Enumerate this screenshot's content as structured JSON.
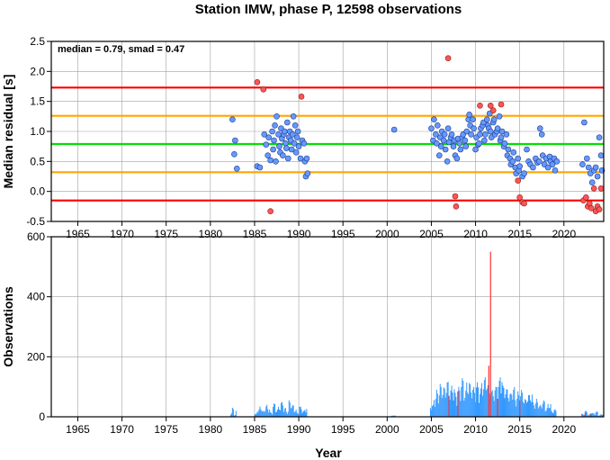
{
  "chart_data": [
    {
      "type": "scatter",
      "title": "Station IMW, phase P, 12598 observations",
      "xlabel": "",
      "ylabel": "Median residual [s]",
      "xlim": [
        1962,
        2024.5
      ],
      "ylim": [
        -0.5,
        2.5
      ],
      "x_ticks": [
        "1965",
        "1970",
        "1975",
        "1980",
        "1985",
        "1990",
        "1995",
        "2000",
        "2005",
        "2010",
        "2015",
        "2020"
      ],
      "y_ticks": [
        "-0.5",
        "0.0",
        "0.5",
        "1.0",
        "1.5",
        "2.0",
        "2.5"
      ],
      "grid": true,
      "annotation": "median = 0.79, smad = 0.47",
      "reference_lines": [
        {
          "value": 1.73,
          "color": "#ff0000"
        },
        {
          "value": 1.26,
          "color": "#ffa500"
        },
        {
          "value": 0.79,
          "color": "#00e000"
        },
        {
          "value": 0.32,
          "color": "#ffa500"
        },
        {
          "value": -0.15,
          "color": "#ff0000"
        }
      ],
      "point_colors": {
        "inlier": "#6699ff",
        "outlier": "#ff5555"
      },
      "inliers": [
        [
          1982.5,
          1.2
        ],
        [
          1982.7,
          0.62
        ],
        [
          1982.8,
          0.85
        ],
        [
          1983.0,
          0.38
        ],
        [
          1985.3,
          0.42
        ],
        [
          1985.6,
          0.4
        ],
        [
          1986.1,
          0.95
        ],
        [
          1986.3,
          0.78
        ],
        [
          1986.5,
          0.6
        ],
        [
          1986.6,
          0.9
        ],
        [
          1986.8,
          0.52
        ],
        [
          1987.0,
          1.0
        ],
        [
          1987.1,
          0.7
        ],
        [
          1987.2,
          0.85
        ],
        [
          1987.3,
          1.1
        ],
        [
          1987.4,
          0.5
        ],
        [
          1987.5,
          1.25
        ],
        [
          1987.7,
          0.95
        ],
        [
          1987.8,
          0.75
        ],
        [
          1987.9,
          0.65
        ],
        [
          1988.0,
          1.05
        ],
        [
          1988.1,
          0.88
        ],
        [
          1988.2,
          0.6
        ],
        [
          1988.3,
          0.95
        ],
        [
          1988.4,
          1.0
        ],
        [
          1988.5,
          0.8
        ],
        [
          1988.6,
          0.72
        ],
        [
          1988.7,
          1.15
        ],
        [
          1988.8,
          0.55
        ],
        [
          1988.9,
          0.9
        ],
        [
          1989.0,
          1.0
        ],
        [
          1989.1,
          0.85
        ],
        [
          1989.2,
          0.7
        ],
        [
          1989.3,
          0.95
        ],
        [
          1989.4,
          1.25
        ],
        [
          1989.5,
          0.8
        ],
        [
          1989.6,
          1.1
        ],
        [
          1989.7,
          0.65
        ],
        [
          1989.8,
          0.9
        ],
        [
          1989.9,
          1.0
        ],
        [
          1990.0,
          0.75
        ],
        [
          1990.2,
          0.55
        ],
        [
          1990.4,
          0.85
        ],
        [
          1990.6,
          0.8
        ],
        [
          1990.7,
          0.5
        ],
        [
          1990.8,
          0.25
        ],
        [
          1990.9,
          0.55
        ],
        [
          1991.0,
          0.3
        ],
        [
          2000.8,
          1.03
        ],
        [
          2005.0,
          1.05
        ],
        [
          2005.2,
          0.85
        ],
        [
          2005.3,
          1.2
        ],
        [
          2005.5,
          0.95
        ],
        [
          2005.6,
          0.8
        ],
        [
          2005.7,
          1.1
        ],
        [
          2005.9,
          0.6
        ],
        [
          2006.0,
          0.9
        ],
        [
          2006.1,
          0.75
        ],
        [
          2006.2,
          1.0
        ],
        [
          2006.4,
          0.85
        ],
        [
          2006.5,
          0.95
        ],
        [
          2006.6,
          0.7
        ],
        [
          2006.8,
          0.5
        ],
        [
          2006.9,
          1.05
        ],
        [
          2007.0,
          0.82
        ],
        [
          2007.2,
          0.9
        ],
        [
          2007.3,
          0.95
        ],
        [
          2007.5,
          0.75
        ],
        [
          2007.6,
          0.85
        ],
        [
          2007.7,
          0.6
        ],
        [
          2007.9,
          0.55
        ],
        [
          2008.0,
          0.88
        ],
        [
          2008.2,
          0.8
        ],
        [
          2008.3,
          0.7
        ],
        [
          2008.5,
          0.9
        ],
        [
          2008.6,
          0.95
        ],
        [
          2008.8,
          0.85
        ],
        [
          2008.9,
          0.75
        ],
        [
          2009.0,
          1.0
        ],
        [
          2009.2,
          1.2
        ],
        [
          2009.3,
          1.28
        ],
        [
          2009.4,
          1.1
        ],
        [
          2009.5,
          0.95
        ],
        [
          2009.7,
          1.2
        ],
        [
          2009.8,
          1.05
        ],
        [
          2010.0,
          0.7
        ],
        [
          2010.1,
          0.9
        ],
        [
          2010.3,
          0.78
        ],
        [
          2010.4,
          0.8
        ],
        [
          2010.5,
          0.95
        ],
        [
          2010.6,
          1.05
        ],
        [
          2010.8,
          1.1
        ],
        [
          2010.9,
          1.15
        ],
        [
          2011.0,
          0.85
        ],
        [
          2011.1,
          0.95
        ],
        [
          2011.3,
          1.2
        ],
        [
          2011.4,
          1.1
        ],
        [
          2011.5,
          1.05
        ],
        [
          2011.6,
          1.3
        ],
        [
          2011.7,
          1.0
        ],
        [
          2011.8,
          0.9
        ],
        [
          2012.0,
          1.15
        ],
        [
          2012.1,
          1.2
        ],
        [
          2012.2,
          0.95
        ],
        [
          2012.4,
          1.0
        ],
        [
          2012.5,
          1.05
        ],
        [
          2012.7,
          1.25
        ],
        [
          2012.8,
          0.85
        ],
        [
          2012.9,
          0.9
        ],
        [
          2013.0,
          1.0
        ],
        [
          2013.2,
          0.75
        ],
        [
          2013.3,
          0.8
        ],
        [
          2013.5,
          0.95
        ],
        [
          2013.6,
          0.6
        ],
        [
          2013.7,
          0.7
        ],
        [
          2013.9,
          0.55
        ],
        [
          2014.0,
          0.45
        ],
        [
          2014.2,
          0.5
        ],
        [
          2014.3,
          0.65
        ],
        [
          2014.5,
          0.4
        ],
        [
          2014.6,
          0.3
        ],
        [
          2014.8,
          0.55
        ],
        [
          2014.9,
          0.35
        ],
        [
          2015.0,
          0.42
        ],
        [
          2015.3,
          0.25
        ],
        [
          2015.5,
          0.3
        ],
        [
          2015.8,
          0.7
        ],
        [
          2016.0,
          0.5
        ],
        [
          2016.2,
          0.45
        ],
        [
          2016.5,
          0.4
        ],
        [
          2016.8,
          0.55
        ],
        [
          2017.0,
          0.48
        ],
        [
          2017.2,
          0.5
        ],
        [
          2017.3,
          1.05
        ],
        [
          2017.5,
          0.95
        ],
        [
          2017.6,
          0.6
        ],
        [
          2017.8,
          0.45
        ],
        [
          2018.0,
          0.55
        ],
        [
          2018.2,
          0.4
        ],
        [
          2018.4,
          0.58
        ],
        [
          2018.5,
          0.5
        ],
        [
          2018.7,
          0.45
        ],
        [
          2018.9,
          0.55
        ],
        [
          2019.0,
          0.35
        ],
        [
          2019.2,
          0.5
        ],
        [
          2022.1,
          0.45
        ],
        [
          2022.3,
          1.15
        ],
        [
          2022.6,
          0.55
        ],
        [
          2022.8,
          0.4
        ],
        [
          2023.0,
          0.3
        ],
        [
          2023.2,
          0.15
        ],
        [
          2023.4,
          0.35
        ],
        [
          2023.6,
          0.4
        ],
        [
          2023.8,
          0.25
        ],
        [
          2024.0,
          0.9
        ],
        [
          2024.2,
          0.6
        ],
        [
          2024.3,
          0.35
        ]
      ],
      "outliers": [
        [
          1985.3,
          1.82
        ],
        [
          1986.0,
          1.7
        ],
        [
          1986.8,
          -0.33
        ],
        [
          1990.3,
          1.58
        ],
        [
          2006.9,
          2.22
        ],
        [
          2007.7,
          -0.08
        ],
        [
          2007.8,
          -0.25
        ],
        [
          2010.5,
          1.43
        ],
        [
          2011.7,
          1.43
        ],
        [
          2012.0,
          1.35
        ],
        [
          2012.9,
          1.45
        ],
        [
          2014.8,
          0.18
        ],
        [
          2015.0,
          -0.1
        ],
        [
          2015.3,
          -0.18
        ],
        [
          2015.5,
          -0.2
        ],
        [
          2022.2,
          -0.15
        ],
        [
          2022.5,
          -0.1
        ],
        [
          2022.7,
          -0.25
        ],
        [
          2022.9,
          -0.2
        ],
        [
          2023.1,
          -0.28
        ],
        [
          2023.4,
          0.05
        ],
        [
          2023.6,
          -0.33
        ],
        [
          2023.8,
          -0.25
        ],
        [
          2024.0,
          -0.3
        ],
        [
          2024.2,
          0.05
        ]
      ]
    },
    {
      "type": "bar",
      "title": "",
      "xlabel": "Year",
      "ylabel": "Observations",
      "xlim": [
        1962,
        2024.5
      ],
      "ylim": [
        0,
        600
      ],
      "x_ticks": [
        "1965",
        "1970",
        "1975",
        "1980",
        "1985",
        "1990",
        "1995",
        "2000",
        "2005",
        "2010",
        "2015",
        "2020"
      ],
      "y_ticks": [
        "0",
        "200",
        "400",
        "600"
      ],
      "grid": true,
      "series": [
        {
          "color": "#3399ff",
          "ranges": [
            {
              "start": 1982.3,
              "end": 1983.0,
              "levels": [
                15,
                30,
                8,
                20
              ]
            },
            {
              "start": 1985.0,
              "end": 1991.0,
              "levels": [
                10,
                25,
                35,
                20,
                40,
                30,
                15,
                45,
                25,
                35,
                50,
                30,
                20,
                55,
                40,
                25,
                15,
                35,
                20,
                30
              ]
            },
            {
              "start": 2000.5,
              "end": 2001.0,
              "levels": [
                4,
                6
              ]
            },
            {
              "start": 2004.9,
              "end": 2019.2,
              "levels": [
                40,
                70,
                90,
                110,
                100,
                120,
                95,
                105,
                80,
                100,
                130,
                90,
                120,
                110,
                100,
                115,
                95,
                125,
                140,
                110,
                90,
                100,
                120,
                150,
                105,
                95,
                80,
                100,
                70,
                85,
                90,
                60,
                75,
                80,
                50,
                60,
                40,
                55,
                30,
                45,
                20,
                25
              ]
            },
            {
              "start": 2022.0,
              "end": 2024.5,
              "levels": [
                10,
                20,
                8,
                15,
                12,
                18,
                6,
                10
              ]
            }
          ]
        },
        {
          "color": "#ff3333",
          "bars": [
            [
              1985.2,
              3
            ],
            [
              2007.0,
              70
            ],
            [
              2008.0,
              85
            ],
            [
              2011.7,
              550
            ],
            [
              2011.5,
              170
            ],
            [
              2012.5,
              60
            ],
            [
              2015.0,
              55
            ],
            [
              2022.4,
              12
            ],
            [
              2023.1,
              10
            ]
          ]
        }
      ]
    }
  ]
}
